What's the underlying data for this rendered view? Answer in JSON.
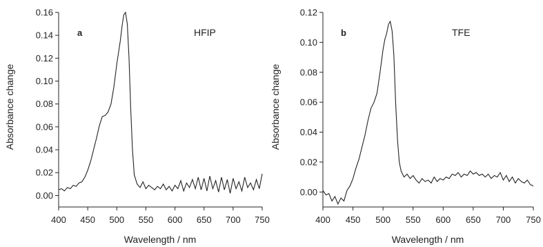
{
  "chart_data": [
    {
      "type": "line",
      "panel_label": "a",
      "annotation": "HFIP",
      "xlabel": "Wavelength / nm",
      "ylabel": "Absorbance change",
      "xlim": [
        400,
        750
      ],
      "ylim": [
        -0.01,
        0.16
      ],
      "xticks": [
        "400",
        "450",
        "500",
        "550",
        "600",
        "650",
        "700",
        "750"
      ],
      "yticks": [
        "0.00",
        "0.02",
        "0.04",
        "0.06",
        "0.08",
        "0.10",
        "0.12",
        "0.14",
        "0.16"
      ],
      "series": [
        {
          "color": "#222222",
          "x": [
            400,
            405,
            410,
            415,
            420,
            425,
            430,
            435,
            440,
            445,
            450,
            455,
            460,
            465,
            470,
            475,
            480,
            485,
            490,
            495,
            500,
            503,
            506,
            509,
            512,
            515,
            518,
            521,
            524,
            527,
            530,
            535,
            540,
            545,
            550,
            555,
            560,
            565,
            570,
            575,
            580,
            585,
            590,
            595,
            600,
            605,
            610,
            615,
            620,
            625,
            630,
            635,
            640,
            645,
            650,
            655,
            660,
            665,
            670,
            675,
            680,
            685,
            690,
            695,
            700,
            705,
            710,
            715,
            720,
            725,
            730,
            735,
            740,
            745,
            750
          ],
          "y": [
            0.005,
            0.006,
            0.004,
            0.007,
            0.006,
            0.009,
            0.008,
            0.011,
            0.012,
            0.016,
            0.022,
            0.03,
            0.04,
            0.05,
            0.061,
            0.069,
            0.07,
            0.073,
            0.08,
            0.095,
            0.115,
            0.125,
            0.135,
            0.148,
            0.158,
            0.16,
            0.15,
            0.12,
            0.075,
            0.04,
            0.018,
            0.01,
            0.007,
            0.012,
            0.006,
            0.009,
            0.007,
            0.005,
            0.008,
            0.006,
            0.01,
            0.005,
            0.008,
            0.004,
            0.009,
            0.006,
            0.013,
            0.004,
            0.011,
            0.007,
            0.014,
            0.006,
            0.016,
            0.005,
            0.015,
            0.004,
            0.017,
            0.006,
            0.013,
            0.003,
            0.016,
            0.005,
            0.014,
            0.002,
            0.015,
            0.006,
            0.012,
            0.004,
            0.016,
            0.007,
            0.011,
            0.005,
            0.014,
            0.006,
            0.019
          ]
        }
      ]
    },
    {
      "type": "line",
      "panel_label": "b",
      "annotation": "TFE",
      "xlabel": "Wavelength / nm",
      "ylabel": "Absorbance change",
      "xlim": [
        400,
        750
      ],
      "ylim": [
        -0.01,
        0.12
      ],
      "xticks": [
        "400",
        "450",
        "500",
        "550",
        "600",
        "650",
        "700",
        "750"
      ],
      "yticks": [
        "0.00",
        "0.02",
        "0.04",
        "0.06",
        "0.08",
        "0.10",
        "0.12"
      ],
      "series": [
        {
          "color": "#222222",
          "x": [
            400,
            405,
            410,
            415,
            420,
            425,
            430,
            435,
            440,
            445,
            450,
            455,
            460,
            465,
            470,
            475,
            480,
            485,
            490,
            495,
            500,
            503,
            506,
            509,
            512,
            515,
            518,
            521,
            524,
            527,
            530,
            535,
            540,
            545,
            550,
            555,
            560,
            565,
            570,
            575,
            580,
            585,
            590,
            595,
            600,
            605,
            610,
            615,
            620,
            625,
            630,
            635,
            640,
            645,
            650,
            655,
            660,
            665,
            670,
            675,
            680,
            685,
            690,
            695,
            700,
            705,
            710,
            715,
            720,
            725,
            730,
            735,
            740,
            745,
            750
          ],
          "y": [
            0.001,
            -0.002,
            -0.001,
            -0.006,
            -0.003,
            -0.008,
            -0.004,
            -0.006,
            0.001,
            0.004,
            0.009,
            0.016,
            0.022,
            0.03,
            0.038,
            0.048,
            0.056,
            0.06,
            0.066,
            0.08,
            0.095,
            0.102,
            0.106,
            0.112,
            0.114,
            0.108,
            0.092,
            0.06,
            0.035,
            0.02,
            0.014,
            0.01,
            0.012,
            0.009,
            0.011,
            0.008,
            0.006,
            0.009,
            0.007,
            0.008,
            0.006,
            0.01,
            0.007,
            0.009,
            0.008,
            0.01,
            0.009,
            0.012,
            0.011,
            0.013,
            0.01,
            0.012,
            0.011,
            0.014,
            0.012,
            0.013,
            0.011,
            0.012,
            0.01,
            0.012,
            0.009,
            0.011,
            0.01,
            0.013,
            0.008,
            0.011,
            0.007,
            0.01,
            0.006,
            0.009,
            0.007,
            0.006,
            0.008,
            0.005,
            0.004
          ]
        }
      ]
    }
  ]
}
